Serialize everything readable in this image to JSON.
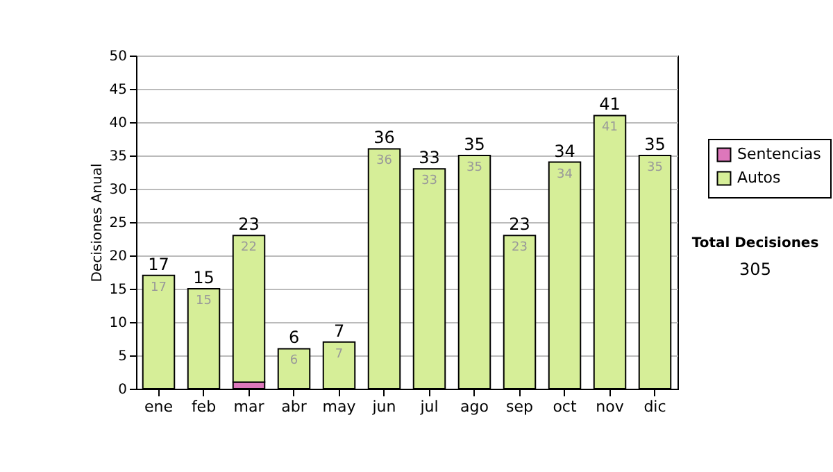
{
  "chart_data": {
    "type": "bar",
    "stacked": true,
    "ylabel": "Decisiones Anual",
    "categories": [
      "ene",
      "feb",
      "mar",
      "abr",
      "may",
      "jun",
      "jul",
      "ago",
      "sep",
      "oct",
      "nov",
      "dic"
    ],
    "series": [
      {
        "name": "Sentencias",
        "color": "#dd77bb",
        "values": [
          0,
          0,
          1,
          0,
          0,
          0,
          0,
          0,
          0,
          0,
          0,
          0
        ]
      },
      {
        "name": "Autos",
        "color": "#d6ee98",
        "values": [
          17,
          15,
          22,
          6,
          7,
          36,
          33,
          35,
          23,
          34,
          41,
          35
        ],
        "value_labels": [
          "17",
          "15",
          "22",
          "6",
          "7",
          "36",
          "33",
          "35",
          "23",
          "34",
          "41",
          "35"
        ]
      }
    ],
    "totals": [
      "17",
      "15",
      "23",
      "6",
      "7",
      "36",
      "33",
      "35",
      "23",
      "34",
      "41",
      "35"
    ],
    "ylim": [
      0,
      50
    ],
    "yticks": [
      0,
      5,
      10,
      15,
      20,
      25,
      30,
      35,
      40,
      45,
      50
    ],
    "grid": "y",
    "legend": "right",
    "annotations": [
      "Total Decisiones",
      "305"
    ]
  }
}
